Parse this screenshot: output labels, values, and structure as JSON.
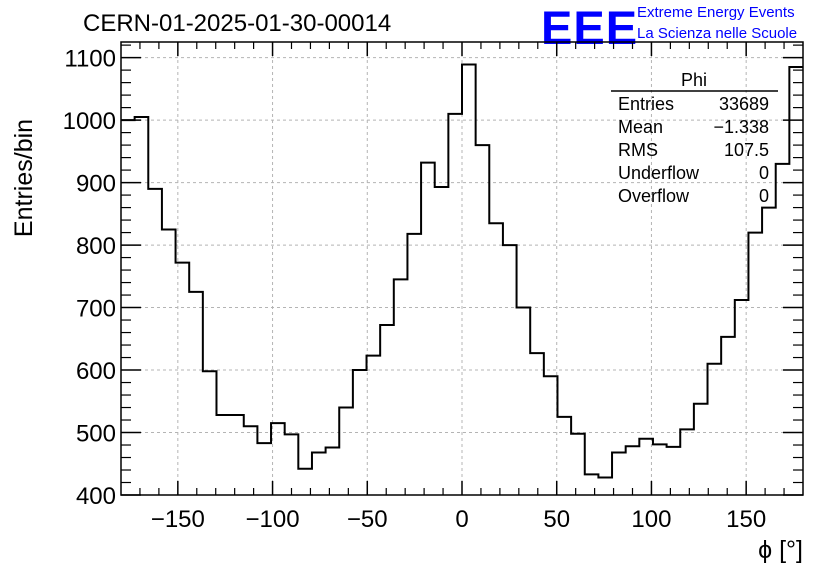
{
  "header": {
    "run_title": "CERN-01-2025-01-30-00014",
    "logo_text": "EEE",
    "logo_line1": "Extreme Energy Events",
    "logo_line2": "La Scienza nelle Scuole"
  },
  "stats_box": {
    "title": "Phi",
    "rows": [
      {
        "label": "Entries",
        "value": "33689"
      },
      {
        "label": "Mean",
        "value": "−1.338"
      },
      {
        "label": "RMS",
        "value": "107.5"
      },
      {
        "label": "Underflow",
        "value": "0"
      },
      {
        "label": "Overflow",
        "value": "0"
      }
    ]
  },
  "colors": {
    "line": "#000000",
    "grid": "#b4b4b4",
    "logo": "#0000ff"
  },
  "chart_data": {
    "type": "histogram",
    "title": "CERN-01-2025-01-30-00014",
    "xlabel": "ϕ [°]",
    "ylabel": "Entries/bin",
    "xlim": [
      -180,
      180
    ],
    "ylim": [
      400,
      1125
    ],
    "grid": true,
    "bin_width": 7.2,
    "bin_edges_start": -180,
    "xticks": [
      -150,
      -100,
      -50,
      0,
      50,
      100,
      150
    ],
    "xtick_labels": [
      "−150",
      "−100",
      "−50",
      "0",
      "50",
      "100",
      "150"
    ],
    "yticks": [
      400,
      500,
      600,
      700,
      800,
      900,
      1000,
      1100
    ],
    "ytick_labels": [
      "400",
      "500",
      "600",
      "700",
      "800",
      "900",
      "1000",
      "1100"
    ],
    "values": [
      1000,
      1005,
      890,
      825,
      772,
      725,
      598,
      528,
      528,
      510,
      483,
      515,
      497,
      442,
      468,
      476,
      540,
      600,
      623,
      672,
      745,
      818,
      932,
      893,
      1010,
      1089,
      960,
      835,
      800,
      700,
      627,
      590,
      525,
      498,
      433,
      428,
      468,
      478,
      490,
      481,
      477,
      505,
      546,
      610,
      653,
      712,
      820,
      860,
      930,
      1085
    ]
  }
}
